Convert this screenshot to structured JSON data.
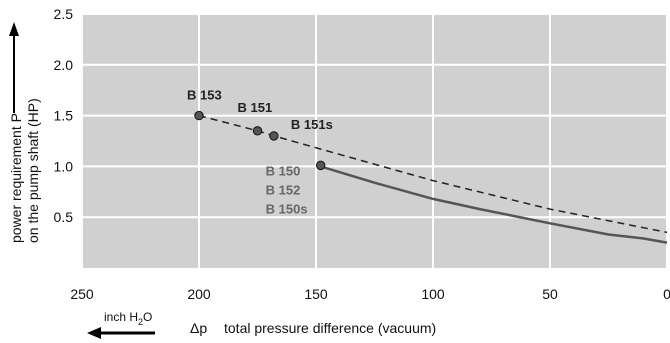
{
  "chart_data": {
    "type": "line",
    "x_reversed": true,
    "xlim": [
      250,
      0
    ],
    "ylim": [
      0,
      2.5
    ],
    "grid": true,
    "x_ticks": [
      "250",
      "200",
      "150",
      "100",
      "50",
      "0"
    ],
    "y_ticks": [
      "2.5",
      "2.0",
      "1.5",
      "1.0",
      "0.5"
    ],
    "ylabel_line1": "power requirement P",
    "ylabel_line2": "on the pump shaft (HP)",
    "xlabel_symbol": "Δp",
    "xlabel_text": "total pressure difference (vacuum)",
    "x_unit": "inch H",
    "x_unit_sub": "2",
    "x_unit_end": "O",
    "series": [
      {
        "style": "dashed",
        "color": "#222222",
        "x": [
          200,
          175,
          168,
          148,
          100,
          50,
          0
        ],
        "y": [
          1.5,
          1.35,
          1.3,
          1.17,
          0.86,
          0.58,
          0.35
        ]
      },
      {
        "style": "solid",
        "color": "#555555",
        "x": [
          148,
          125,
          100,
          80,
          50,
          25,
          10,
          0
        ],
        "y": [
          1.0,
          0.84,
          0.68,
          0.58,
          0.44,
          0.33,
          0.29,
          0.25
        ]
      }
    ],
    "points": [
      {
        "x": 200,
        "y": 1.5
      },
      {
        "x": 175,
        "y": 1.35
      },
      {
        "x": 168,
        "y": 1.3
      },
      {
        "x": 148,
        "y": 1.01
      }
    ],
    "annotations": [
      {
        "text": "B 153",
        "x": 200,
        "y": 1.5,
        "color": "#222222"
      },
      {
        "text": "B 151",
        "x": 175,
        "y": 1.35,
        "color": "#222222"
      },
      {
        "text": "B 151s",
        "x": 168,
        "y": 1.3,
        "color": "#222222"
      },
      {
        "text": "B 150",
        "x": 148,
        "y": 1.01,
        "color": "#666666"
      },
      {
        "text": "B 152",
        "x": 148,
        "y": 1.01,
        "color": "#666666"
      },
      {
        "text": "B 150s",
        "x": 148,
        "y": 1.01,
        "color": "#666666"
      }
    ]
  }
}
